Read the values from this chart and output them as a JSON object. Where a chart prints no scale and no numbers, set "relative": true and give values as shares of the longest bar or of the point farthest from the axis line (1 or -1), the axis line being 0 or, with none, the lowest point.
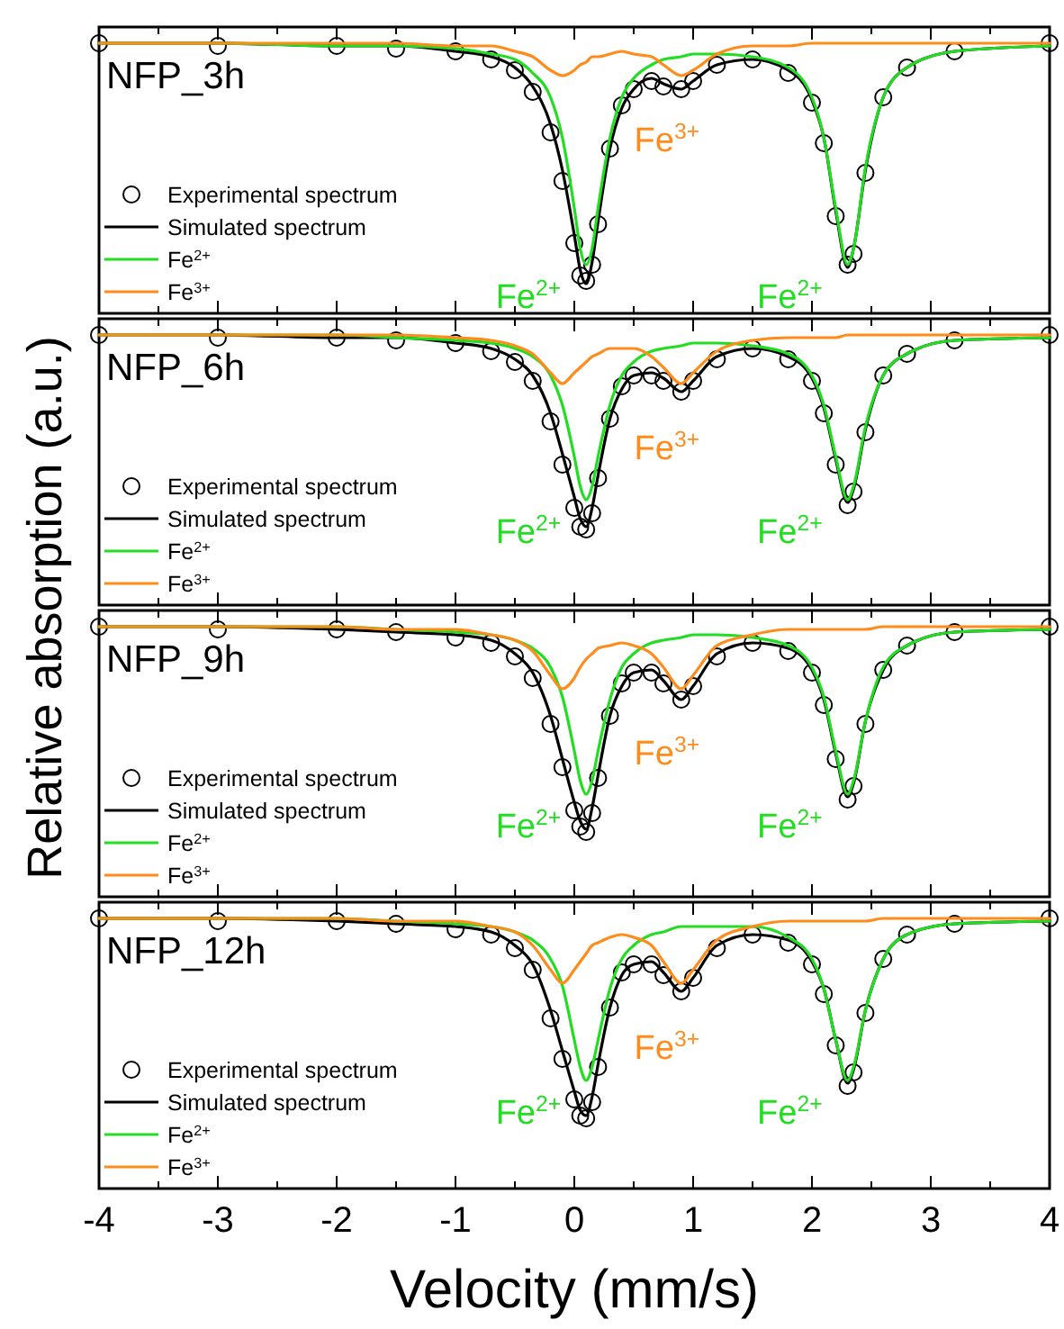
{
  "chart_data": [
    {
      "type": "line",
      "title": "NFP_3h",
      "ylabel": "Relative absorption (a.u.)",
      "relative": true,
      "legend": "bottom left",
      "tick_labels": false,
      "xlim": [
        -4,
        4
      ],
      "xticks": [
        -4,
        {
          "value": -3.5,
          "label": null
        },
        -3,
        {
          "value": -2.5,
          "label": null
        },
        -2,
        {
          "value": -1.5,
          "label": null
        },
        -1,
        {
          "value": -0.5,
          "label": null
        },
        0,
        {
          "value": 0.5,
          "label": null
        },
        1,
        {
          "value": 1.5,
          "label": null
        },
        2,
        {
          "value": 2.5,
          "label": null
        },
        3,
        {
          "value": 3.5,
          "label": null
        },
        4
      ],
      "x": [
        -4,
        -3,
        -2,
        -1.5,
        -1,
        -0.7,
        -0.5,
        -0.35,
        -0.2,
        -0.1,
        0,
        0.05,
        0.1,
        0.15,
        0.2,
        0.3,
        0.4,
        0.5,
        0.65,
        0.75,
        0.9,
        1,
        1.2,
        1.5,
        1.8,
        2,
        2.1,
        2.2,
        2.3,
        2.35,
        2.45,
        2.6,
        2.8,
        3.2,
        4
      ],
      "series": [
        {
          "name": "Experimental spectrum",
          "type": "scatter",
          "marker": "circle",
          "color": "#000000",
          "values": [
            1,
            0.99,
            0.99,
            0.98,
            0.97,
            0.94,
            0.9,
            0.82,
            0.67,
            0.49,
            0.26,
            0.14,
            0.12,
            0.18,
            0.33,
            0.61,
            0.77,
            0.83,
            0.86,
            0.84,
            0.83,
            0.86,
            0.92,
            0.94,
            0.89,
            0.78,
            0.63,
            0.36,
            0.18,
            0.22,
            0.52,
            0.8,
            0.91,
            0.97,
            1
          ]
        },
        {
          "name": "Simulated spectrum",
          "color": "#000000",
          "values": [
            1,
            1,
            0.99,
            0.99,
            0.97,
            0.95,
            0.91,
            0.84,
            0.7,
            0.53,
            0.29,
            0.16,
            0.11,
            0.19,
            0.34,
            0.61,
            0.76,
            0.83,
            0.87,
            0.85,
            0.83,
            0.86,
            0.92,
            0.94,
            0.9,
            0.79,
            0.65,
            0.38,
            0.17,
            0.24,
            0.53,
            0.8,
            0.91,
            0.97,
            0.99
          ]
        },
        {
          "name": "Fe$^{2+}$",
          "color": "#22dd22",
          "values": [
            1,
            1,
            0.99,
            0.99,
            0.98,
            0.96,
            0.94,
            0.89,
            0.8,
            0.65,
            0.39,
            0.24,
            0.18,
            0.24,
            0.39,
            0.65,
            0.8,
            0.87,
            0.92,
            0.94,
            0.95,
            0.96,
            0.96,
            0.95,
            0.91,
            0.8,
            0.65,
            0.39,
            0.18,
            0.24,
            0.54,
            0.8,
            0.91,
            0.97,
            0.99
          ]
        },
        {
          "name": "Fe$^{3+}$",
          "color": "#ff8c1a",
          "values": [
            1,
            1,
            1,
            1,
            0.99,
            0.99,
            0.97,
            0.95,
            0.9,
            0.88,
            0.9,
            0.92,
            0.93,
            0.95,
            0.95,
            0.96,
            0.97,
            0.96,
            0.95,
            0.92,
            0.88,
            0.9,
            0.96,
            0.99,
            0.99,
            1,
            1,
            1,
            1,
            1,
            1,
            1,
            1,
            1,
            1
          ]
        }
      ],
      "annotations": [
        {
          "text": "Fe$^{2+}$",
          "x": 0.1,
          "y": 0.18
        },
        {
          "text": "Fe$^{3+}$",
          "x": 0.9,
          "y": 0.88
        },
        {
          "text": "Fe$^{2+}$",
          "x": 2.3,
          "y": 0.18
        }
      ]
    },
    {
      "type": "line",
      "title": "NFP_6h",
      "relative": true,
      "legend": "bottom left",
      "tick_labels": false,
      "xlim": [
        -4,
        4
      ],
      "xticks": [
        -4,
        {
          "value": -3.5,
          "label": null
        },
        -3,
        {
          "value": -2.5,
          "label": null
        },
        -2,
        {
          "value": -1.5,
          "label": null
        },
        -1,
        {
          "value": -0.5,
          "label": null
        },
        0,
        {
          "value": 0.5,
          "label": null
        },
        1,
        {
          "value": 1.5,
          "label": null
        },
        2,
        {
          "value": 2.5,
          "label": null
        },
        3,
        {
          "value": 3.5,
          "label": null
        },
        4
      ],
      "x": [
        -4,
        -3,
        -2,
        -1.5,
        -1,
        -0.7,
        -0.5,
        -0.35,
        -0.2,
        -0.1,
        0,
        0.05,
        0.1,
        0.15,
        0.2,
        0.3,
        0.4,
        0.5,
        0.65,
        0.75,
        0.9,
        1,
        1.2,
        1.5,
        1.8,
        2,
        2.1,
        2.2,
        2.3,
        2.35,
        2.45,
        2.6,
        2.8,
        3.2,
        4
      ],
      "series": [
        {
          "name": "Experimental spectrum",
          "type": "scatter",
          "marker": "circle",
          "color": "#000000",
          "values": [
            1,
            0.99,
            0.99,
            0.98,
            0.97,
            0.94,
            0.9,
            0.83,
            0.68,
            0.52,
            0.36,
            0.29,
            0.28,
            0.34,
            0.47,
            0.69,
            0.81,
            0.85,
            0.85,
            0.83,
            0.79,
            0.83,
            0.91,
            0.95,
            0.91,
            0.83,
            0.71,
            0.52,
            0.37,
            0.42,
            0.64,
            0.85,
            0.93,
            0.98,
            1
          ]
        },
        {
          "name": "Simulated spectrum",
          "color": "#000000",
          "values": [
            1,
            1,
            0.99,
            0.99,
            0.97,
            0.95,
            0.91,
            0.85,
            0.71,
            0.56,
            0.4,
            0.32,
            0.29,
            0.36,
            0.48,
            0.69,
            0.8,
            0.85,
            0.86,
            0.84,
            0.79,
            0.83,
            0.92,
            0.95,
            0.92,
            0.84,
            0.73,
            0.54,
            0.38,
            0.43,
            0.65,
            0.85,
            0.93,
            0.98,
            0.99
          ]
        },
        {
          "name": "Fe$^{2+}$",
          "color": "#22dd22",
          "values": [
            1,
            1,
            1,
            0.99,
            0.98,
            0.97,
            0.95,
            0.92,
            0.85,
            0.74,
            0.55,
            0.44,
            0.39,
            0.44,
            0.55,
            0.74,
            0.85,
            0.9,
            0.94,
            0.95,
            0.96,
            0.97,
            0.97,
            0.96,
            0.93,
            0.85,
            0.74,
            0.55,
            0.39,
            0.44,
            0.66,
            0.85,
            0.93,
            0.98,
            0.99
          ]
        },
        {
          "name": "Fe$^{3+}$",
          "color": "#ff8c1a",
          "values": [
            1,
            1,
            1,
            1,
            0.99,
            0.98,
            0.96,
            0.93,
            0.86,
            0.82,
            0.86,
            0.88,
            0.9,
            0.92,
            0.93,
            0.95,
            0.95,
            0.95,
            0.92,
            0.88,
            0.82,
            0.86,
            0.94,
            0.98,
            0.99,
            0.99,
            0.99,
            0.99,
            1,
            1,
            1,
            1,
            1,
            1,
            1
          ]
        }
      ],
      "annotations": [
        {
          "text": "Fe$^{2+}$",
          "x": 0.1,
          "y": 0.39
        },
        {
          "text": "Fe$^{3+}$",
          "x": 0.9,
          "y": 0.82
        },
        {
          "text": "Fe$^{2+}$",
          "x": 2.3,
          "y": 0.39
        }
      ]
    },
    {
      "type": "line",
      "title": "NFP_9h",
      "relative": true,
      "legend": "bottom left",
      "tick_labels": false,
      "xlim": [
        -4,
        4
      ],
      "xticks": [
        -4,
        {
          "value": -3.5,
          "label": null
        },
        -3,
        {
          "value": -2.5,
          "label": null
        },
        -2,
        {
          "value": -1.5,
          "label": null
        },
        -1,
        {
          "value": -0.5,
          "label": null
        },
        0,
        {
          "value": 0.5,
          "label": null
        },
        1,
        {
          "value": 1.5,
          "label": null
        },
        2,
        {
          "value": 2.5,
          "label": null
        },
        3,
        {
          "value": 3.5,
          "label": null
        },
        4
      ],
      "x": [
        -4,
        -3,
        -2,
        -1.5,
        -1,
        -0.7,
        -0.5,
        -0.35,
        -0.2,
        -0.1,
        0,
        0.05,
        0.1,
        0.15,
        0.2,
        0.3,
        0.4,
        0.5,
        0.65,
        0.75,
        0.9,
        1,
        1.2,
        1.5,
        1.8,
        2,
        2.1,
        2.2,
        2.3,
        2.35,
        2.45,
        2.6,
        2.8,
        3.2,
        4
      ],
      "series": [
        {
          "name": "Experimental spectrum",
          "type": "scatter",
          "marker": "circle",
          "color": "#000000",
          "values": [
            1,
            0.99,
            0.99,
            0.98,
            0.96,
            0.94,
            0.89,
            0.81,
            0.64,
            0.48,
            0.32,
            0.26,
            0.24,
            0.31,
            0.44,
            0.67,
            0.79,
            0.83,
            0.83,
            0.79,
            0.73,
            0.78,
            0.89,
            0.94,
            0.91,
            0.83,
            0.71,
            0.51,
            0.36,
            0.41,
            0.64,
            0.84,
            0.93,
            0.98,
            1
          ]
        },
        {
          "name": "Simulated spectrum",
          "color": "#000000",
          "values": [
            1,
            1,
            0.99,
            0.98,
            0.97,
            0.95,
            0.9,
            0.83,
            0.67,
            0.51,
            0.35,
            0.28,
            0.25,
            0.33,
            0.45,
            0.67,
            0.78,
            0.83,
            0.84,
            0.8,
            0.73,
            0.78,
            0.9,
            0.94,
            0.92,
            0.84,
            0.73,
            0.53,
            0.37,
            0.42,
            0.65,
            0.84,
            0.93,
            0.98,
            0.99
          ]
        },
        {
          "name": "Fe$^{2+}$",
          "color": "#22dd22",
          "values": [
            1,
            1,
            1,
            0.99,
            0.98,
            0.97,
            0.95,
            0.92,
            0.85,
            0.74,
            0.54,
            0.43,
            0.38,
            0.43,
            0.54,
            0.73,
            0.85,
            0.9,
            0.94,
            0.95,
            0.96,
            0.97,
            0.97,
            0.96,
            0.93,
            0.85,
            0.74,
            0.54,
            0.38,
            0.43,
            0.65,
            0.85,
            0.93,
            0.98,
            0.99
          ]
        },
        {
          "name": "Fe$^{3+}$",
          "color": "#ff8c1a",
          "values": [
            1,
            1,
            1,
            0.99,
            0.99,
            0.97,
            0.95,
            0.91,
            0.82,
            0.77,
            0.81,
            0.85,
            0.88,
            0.9,
            0.92,
            0.93,
            0.94,
            0.93,
            0.9,
            0.85,
            0.77,
            0.82,
            0.93,
            0.97,
            0.99,
            0.99,
            0.99,
            0.99,
            0.99,
            0.99,
            0.99,
            1,
            1,
            1,
            1
          ]
        }
      ],
      "annotations": [
        {
          "text": "Fe$^{2+}$",
          "x": 0.1,
          "y": 0.38
        },
        {
          "text": "Fe$^{3+}$",
          "x": 0.9,
          "y": 0.77
        },
        {
          "text": "Fe$^{2+}$",
          "x": 2.3,
          "y": 0.38
        }
      ]
    },
    {
      "type": "line",
      "title": "NFP_12h",
      "xlabel": "Velocity (mm/s)",
      "relative": true,
      "legend": "bottom left",
      "tick_labels": "x",
      "xlim": [
        -4,
        4
      ],
      "xticks": [
        -4,
        {
          "value": -3.5,
          "label": null
        },
        -3,
        {
          "value": -2.5,
          "label": null
        },
        -2,
        {
          "value": -1.5,
          "label": null
        },
        -1,
        {
          "value": -0.5,
          "label": null
        },
        0,
        {
          "value": 0.5,
          "label": null
        },
        1,
        {
          "value": 1.5,
          "label": null
        },
        2,
        {
          "value": 2.5,
          "label": null
        },
        3,
        {
          "value": 3.5,
          "label": null
        },
        4
      ],
      "x": [
        -4,
        -3,
        -2,
        -1.5,
        -1,
        -0.7,
        -0.5,
        -0.35,
        -0.2,
        -0.1,
        0,
        0.05,
        0.1,
        0.15,
        0.2,
        0.3,
        0.4,
        0.5,
        0.65,
        0.75,
        0.9,
        1,
        1.2,
        1.5,
        1.8,
        2,
        2.1,
        2.2,
        2.3,
        2.35,
        2.45,
        2.6,
        2.8,
        3.2,
        4
      ],
      "series": [
        {
          "name": "Experimental spectrum",
          "type": "scatter",
          "marker": "circle",
          "color": "#000000",
          "values": [
            1,
            0.99,
            0.99,
            0.98,
            0.96,
            0.94,
            0.89,
            0.81,
            0.63,
            0.48,
            0.33,
            0.27,
            0.26,
            0.32,
            0.45,
            0.67,
            0.8,
            0.83,
            0.83,
            0.79,
            0.73,
            0.78,
            0.89,
            0.94,
            0.91,
            0.83,
            0.72,
            0.53,
            0.38,
            0.43,
            0.65,
            0.85,
            0.94,
            0.98,
            1
          ]
        },
        {
          "name": "Simulated spectrum",
          "color": "#000000",
          "values": [
            1,
            1,
            0.99,
            0.98,
            0.97,
            0.95,
            0.9,
            0.83,
            0.66,
            0.51,
            0.36,
            0.29,
            0.27,
            0.34,
            0.46,
            0.67,
            0.79,
            0.83,
            0.84,
            0.8,
            0.73,
            0.78,
            0.9,
            0.94,
            0.92,
            0.84,
            0.74,
            0.55,
            0.39,
            0.44,
            0.66,
            0.85,
            0.94,
            0.98,
            0.99
          ]
        },
        {
          "name": "Fe$^{2+}$",
          "color": "#22dd22",
          "values": [
            1,
            1,
            1,
            0.99,
            0.98,
            0.97,
            0.95,
            0.92,
            0.85,
            0.75,
            0.55,
            0.45,
            0.4,
            0.45,
            0.55,
            0.74,
            0.85,
            0.9,
            0.94,
            0.95,
            0.97,
            0.97,
            0.97,
            0.97,
            0.93,
            0.85,
            0.74,
            0.55,
            0.4,
            0.45,
            0.66,
            0.85,
            0.94,
            0.98,
            0.99
          ]
        },
        {
          "name": "Fe$^{3+}$",
          "color": "#ff8c1a",
          "values": [
            1,
            1,
            1,
            0.99,
            0.99,
            0.97,
            0.95,
            0.9,
            0.81,
            0.76,
            0.81,
            0.84,
            0.87,
            0.9,
            0.91,
            0.93,
            0.94,
            0.93,
            0.9,
            0.84,
            0.76,
            0.81,
            0.92,
            0.97,
            0.99,
            0.99,
            0.99,
            0.99,
            0.99,
            0.99,
            0.99,
            1,
            1,
            1,
            1
          ]
        }
      ],
      "annotations": [
        {
          "text": "Fe$^{2+}$",
          "x": 0.1,
          "y": 0.4
        },
        {
          "text": "Fe$^{3+}$",
          "x": 0.9,
          "y": 0.76
        },
        {
          "text": "Fe$^{2+}$",
          "x": 2.3,
          "y": 0.4
        }
      ]
    }
  ]
}
